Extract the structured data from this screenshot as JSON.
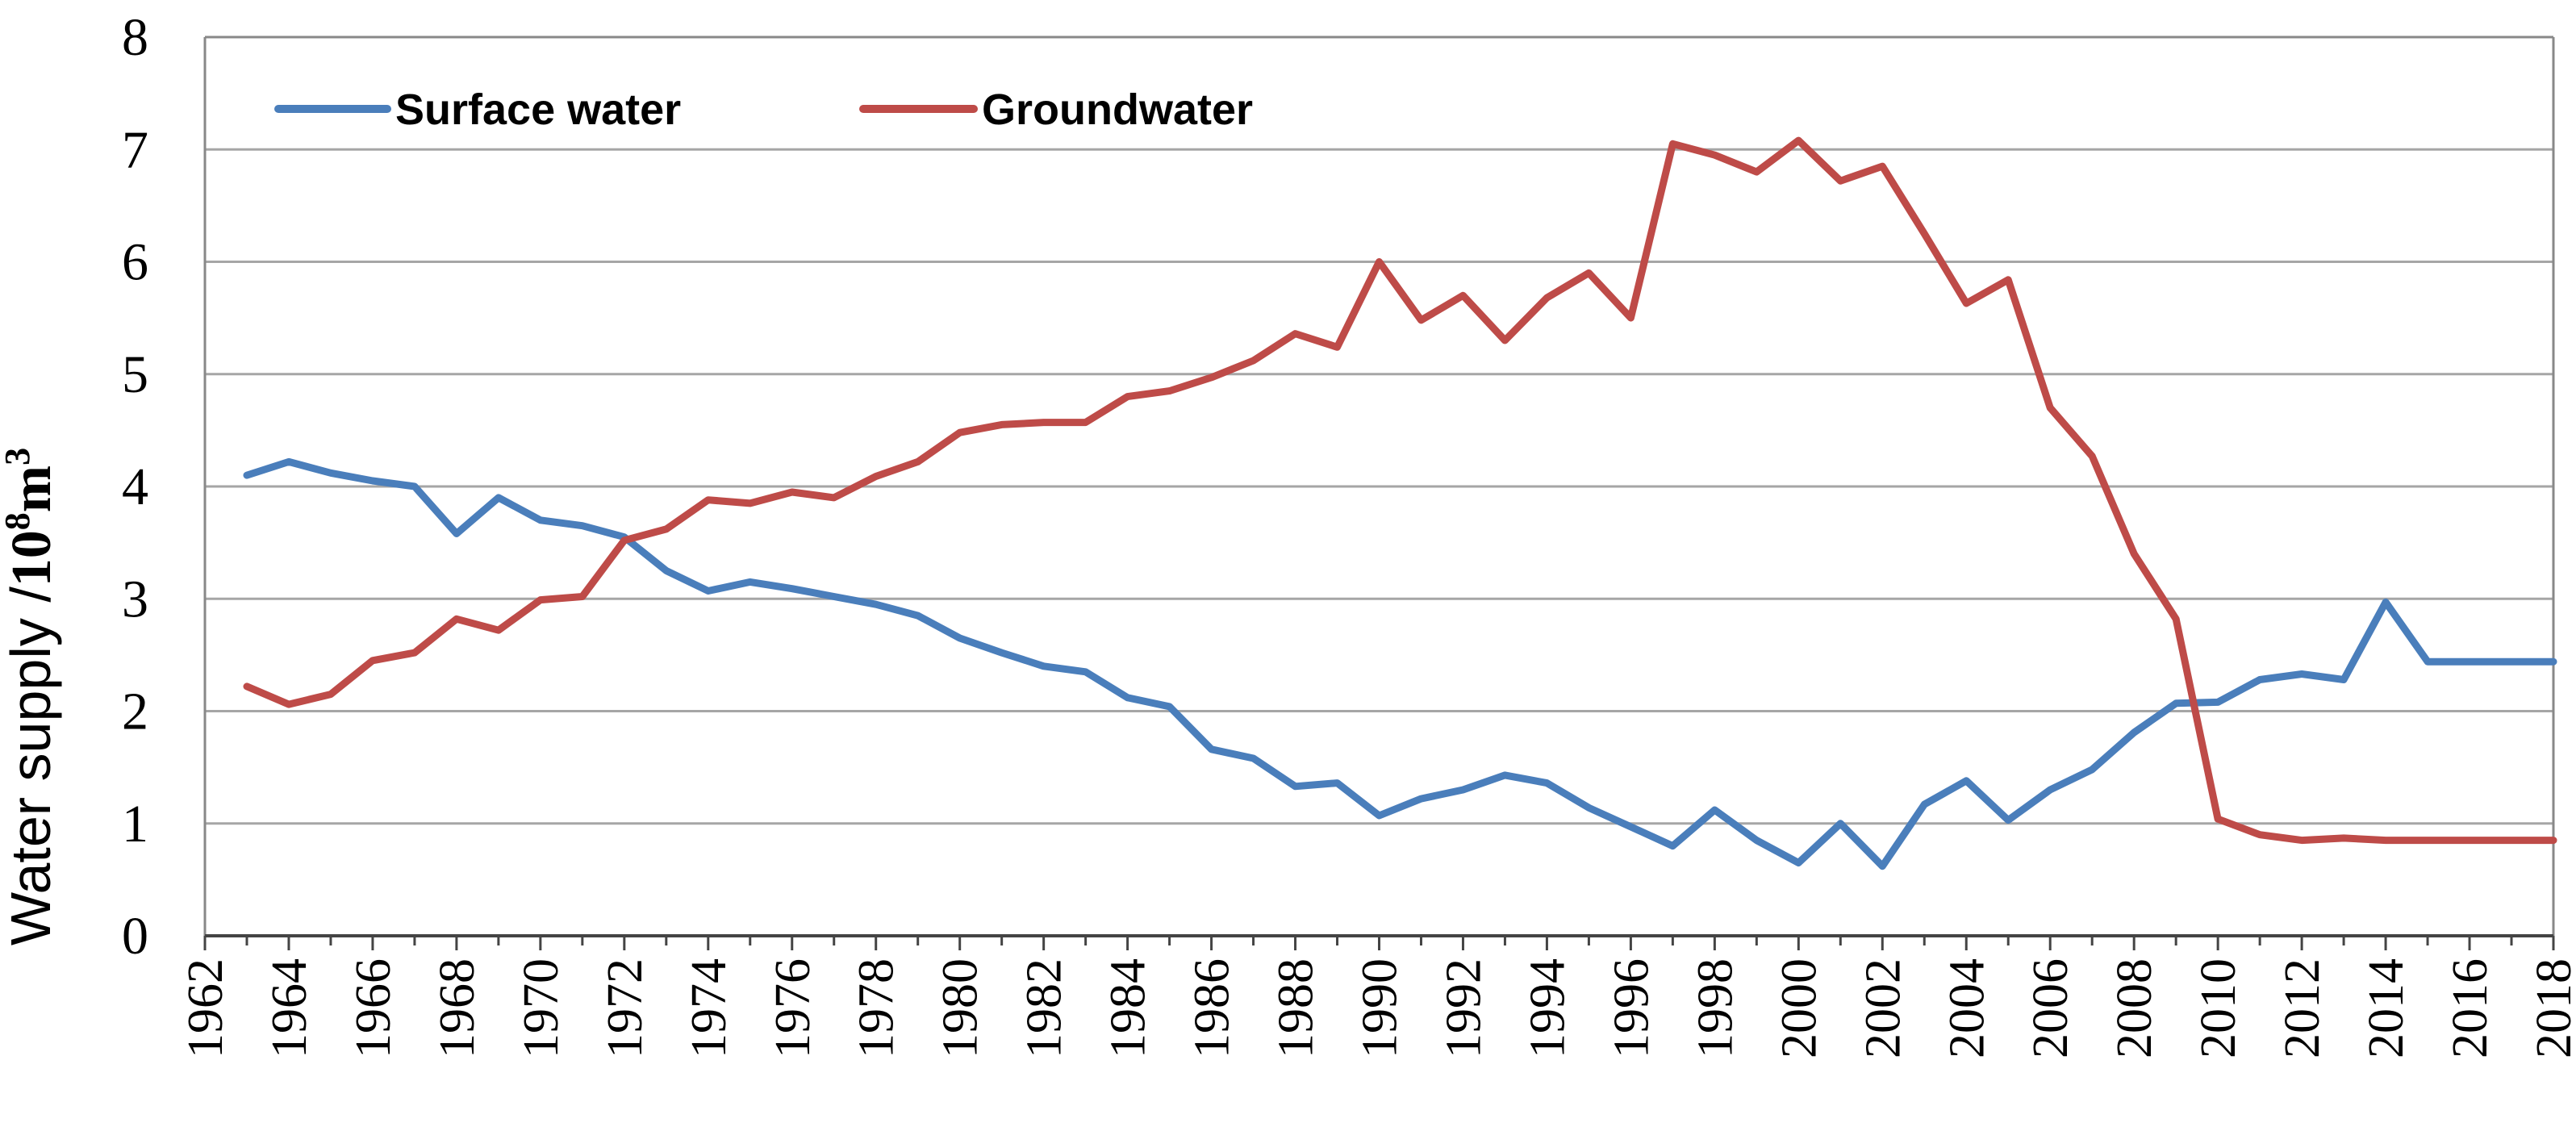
{
  "chart_data": {
    "type": "line",
    "title": "",
    "xlabel": "",
    "ylabel": "Water supply /10⁸m³",
    "ylabel_parts": {
      "main": "Water supply /",
      "unit_base": "10",
      "unit_exp": "8",
      "unit_mid": "m",
      "unit_exp2": "3"
    },
    "xlim": [
      1962,
      2018
    ],
    "ylim": [
      0,
      8
    ],
    "yticks": [
      "0",
      "1",
      "2",
      "3",
      "4",
      "5",
      "6",
      "7",
      "8"
    ],
    "xticks": [
      "1962",
      "1964",
      "1966",
      "1968",
      "1970",
      "1972",
      "1974",
      "1976",
      "1978",
      "1980",
      "1982",
      "1984",
      "1986",
      "1988",
      "1990",
      "1992",
      "1994",
      "1996",
      "1998",
      "2000",
      "2002",
      "2004",
      "2006",
      "2008",
      "2010",
      "2012",
      "2014",
      "2016",
      "2018"
    ],
    "grid": "horizontal",
    "legend_position": "top-left",
    "x": [
      1963,
      1964,
      1965,
      1966,
      1967,
      1968,
      1969,
      1970,
      1971,
      1972,
      1973,
      1974,
      1975,
      1976,
      1977,
      1978,
      1979,
      1980,
      1981,
      1982,
      1983,
      1984,
      1985,
      1986,
      1987,
      1988,
      1989,
      1990,
      1991,
      1992,
      1993,
      1994,
      1995,
      1996,
      1997,
      1998,
      1999,
      2000,
      2001,
      2002,
      2003,
      2004,
      2005,
      2006,
      2007,
      2008,
      2009,
      2010,
      2011,
      2012,
      2013,
      2014,
      2015,
      2016,
      2017,
      2018
    ],
    "series": [
      {
        "name": "Surface water",
        "color": "#4a7ebb",
        "values": [
          4.1,
          4.22,
          4.12,
          4.05,
          4.0,
          3.58,
          3.9,
          3.7,
          3.65,
          3.55,
          3.25,
          3.07,
          3.15,
          3.09,
          3.02,
          2.95,
          2.85,
          2.65,
          2.52,
          2.4,
          2.35,
          2.12,
          2.04,
          1.66,
          1.58,
          1.33,
          1.36,
          1.07,
          1.22,
          1.3,
          1.43,
          1.36,
          1.14,
          0.97,
          0.8,
          1.12,
          0.85,
          0.65,
          1.0,
          0.62,
          1.17,
          1.38,
          1.03,
          1.3,
          1.48,
          1.81,
          2.07,
          2.08,
          2.28,
          2.33,
          2.28,
          2.97,
          2.44,
          2.44,
          2.44,
          2.44
        ]
      },
      {
        "name": "Groundwater",
        "color": "#be4b48",
        "values": [
          2.22,
          2.06,
          2.15,
          2.45,
          2.52,
          2.82,
          2.72,
          2.99,
          3.02,
          3.52,
          3.62,
          3.88,
          3.85,
          3.95,
          3.9,
          4.09,
          4.22,
          4.48,
          4.55,
          4.57,
          4.57,
          4.8,
          4.85,
          4.97,
          5.12,
          5.36,
          5.24,
          6.0,
          5.48,
          5.7,
          5.3,
          5.68,
          5.9,
          5.5,
          7.05,
          6.95,
          6.8,
          7.08,
          6.72,
          6.85,
          6.25,
          5.63,
          5.84,
          4.7,
          4.27,
          3.4,
          2.82,
          1.04,
          0.9,
          0.85,
          0.87,
          0.85,
          0.85,
          0.85,
          0.85,
          0.85
        ]
      }
    ]
  },
  "legend": {
    "surface_label": "Surface water",
    "ground_label": "Groundwater"
  }
}
